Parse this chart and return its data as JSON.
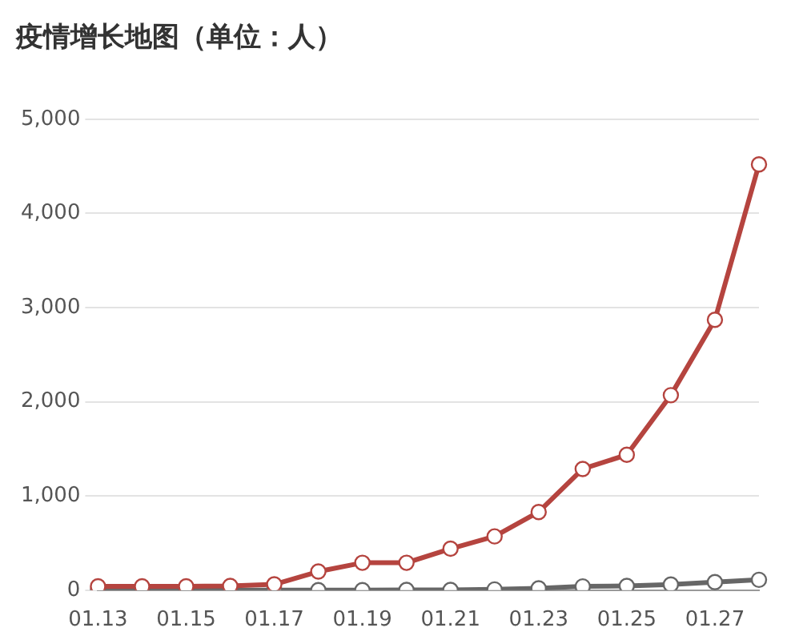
{
  "chart_data": {
    "type": "line",
    "title": "疫情增长地图（单位：人）",
    "categories": [
      "01.13",
      null,
      "01.15",
      null,
      "01.17",
      null,
      "01.19",
      null,
      "01.21",
      null,
      "01.23",
      null,
      "01.25",
      null,
      "01.27",
      null
    ],
    "series": [
      {
        "color": "#b5443f",
        "values": [
          41,
          41,
          41,
          45,
          62,
          198,
          291,
          291,
          440,
          571,
          830,
          1287,
          1437,
          2070,
          2870,
          4520
        ]
      },
      {
        "color": "#666666",
        "values": [
          0,
          0,
          0,
          0,
          0,
          0,
          0,
          2,
          3,
          8,
          20,
          40,
          45,
          60,
          85,
          110
        ]
      }
    ],
    "ylim": [
      0,
      5000
    ],
    "yticks": [
      {
        "value": 0,
        "label": "0"
      },
      {
        "value": 1000,
        "label": "1,000"
      },
      {
        "value": 2000,
        "label": "2,000"
      },
      {
        "value": 3000,
        "label": "3,000"
      },
      {
        "value": 4000,
        "label": "4,000"
      },
      {
        "value": 5000,
        "label": "5,000"
      }
    ],
    "grid": "y",
    "marker": "circle",
    "line_style": "solid",
    "legend": false
  }
}
